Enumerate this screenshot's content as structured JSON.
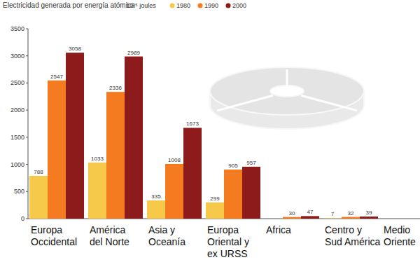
{
  "chart_data": {
    "type": "bar",
    "title": "Electricidad generada por energía atómica",
    "ylabel": "10¹⁵ joules",
    "categories": [
      "Europa\nOccidental",
      "América\ndel Norte",
      "Asia y\nOceanía",
      "Europa\nOriental y\nex URSS",
      "Africa",
      "Centro y\nSud América",
      "Medio\nOriente"
    ],
    "series": [
      {
        "name": "1980",
        "color": "#f7c94b",
        "values": [
          788,
          1033,
          335,
          299,
          null,
          7,
          null
        ]
      },
      {
        "name": "1990",
        "color": "#f47b20",
        "values": [
          2547,
          2336,
          1008,
          905,
          30,
          32,
          null
        ]
      },
      {
        "name": "2000",
        "color": "#8e1b1b",
        "values": [
          3058,
          2989,
          1673,
          957,
          47,
          39,
          null
        ]
      }
    ],
    "ylim": [
      0,
      3500
    ],
    "yticks": [
      0,
      500,
      1000,
      1500,
      2000,
      2500,
      3000,
      3500
    ],
    "grid": false,
    "legend": "top",
    "data_labels": true
  }
}
